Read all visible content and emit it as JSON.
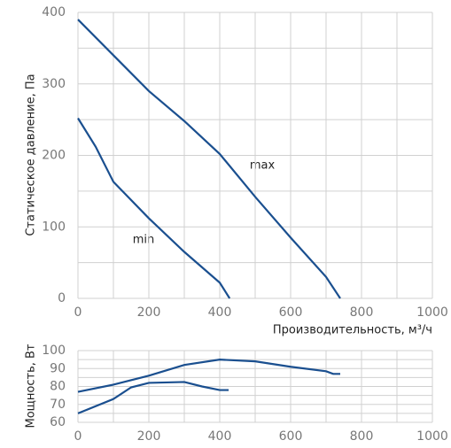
{
  "chart_data": [
    {
      "type": "line",
      "ylabel": "Статическое давление, Па",
      "xlabel": "Производительность, м³/ч",
      "xlim": [
        0,
        1000
      ],
      "xticks": [
        0,
        200,
        400,
        600,
        800,
        1000
      ],
      "xticks_minor": [
        100,
        300,
        500,
        700,
        900
      ],
      "ylim": [
        0,
        400
      ],
      "yticks": [
        0,
        100,
        200,
        300,
        400
      ],
      "yticks_minor": [
        50,
        150,
        250,
        350
      ],
      "grid": true,
      "series": [
        {
          "name": "max",
          "color": "#1a4f8f",
          "x": [
            0,
            100,
            200,
            300,
            400,
            500,
            600,
            700,
            740
          ],
          "values": [
            390,
            340,
            290,
            248,
            202,
            142,
            85,
            30,
            0
          ]
        },
        {
          "name": "min",
          "color": "#1a4f8f",
          "x": [
            0,
            50,
            100,
            200,
            300,
            400,
            428
          ],
          "values": [
            252,
            212,
            163,
            112,
            65,
            22,
            0
          ]
        }
      ]
    },
    {
      "type": "line",
      "ylabel": "Мощность, Вт",
      "xlim": [
        0,
        1000
      ],
      "xticks": [
        0,
        200,
        400,
        600,
        800,
        1000
      ],
      "xticks_minor": [
        100,
        300,
        500,
        700,
        900
      ],
      "ylim": [
        60,
        100
      ],
      "yticks": [
        60,
        70,
        80,
        90,
        100
      ],
      "yticks_minor": [
        65,
        75,
        85,
        95
      ],
      "grid": true,
      "series": [
        {
          "color": "#1a4f8f",
          "x": [
            0,
            100,
            200,
            300,
            400,
            500,
            600,
            700,
            720,
            740
          ],
          "values": [
            77,
            81,
            86,
            92,
            95,
            94,
            91,
            88.5,
            87,
            87
          ]
        },
        {
          "color": "#1a4f8f",
          "x": [
            0,
            100,
            150,
            200,
            300,
            350,
            400,
            425
          ],
          "values": [
            65,
            73,
            79.5,
            82,
            82.5,
            80,
            78,
            78
          ]
        }
      ]
    }
  ]
}
